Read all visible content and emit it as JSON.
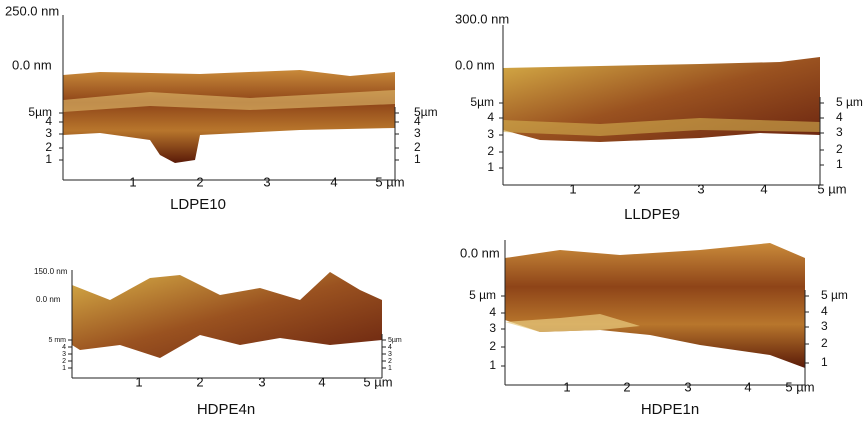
{
  "panels": [
    {
      "top_label": "250.0 nm",
      "zero_label": "0.0 nm",
      "left_axis_labels": [
        "5µm",
        "4",
        "3",
        "2",
        "1"
      ],
      "right_axis_labels": [
        "5µm",
        "4",
        "3",
        "2",
        "1"
      ],
      "x_axis_labels": [
        "1",
        "2",
        "3",
        "4",
        "5 µm"
      ],
      "caption": "LDPE10"
    },
    {
      "top_label": "300.0 nm",
      "zero_label": "0.0 nm",
      "left_axis_labels": [
        "5µm",
        "4",
        "3",
        "2",
        "1"
      ],
      "right_axis_labels": [
        "5 µm",
        "4",
        "3",
        "2",
        "1"
      ],
      "x_axis_labels": [
        "1",
        "2",
        "3",
        "4",
        "5 µm"
      ],
      "caption": "LLDPE9"
    },
    {
      "top_label": "150.0 nm",
      "zero_label": "0.0 nm",
      "left_axis_labels": [
        "5 mm",
        "4",
        "3",
        "2",
        "1"
      ],
      "right_axis_labels": [
        "5µm",
        "4",
        "3",
        "2",
        "1"
      ],
      "x_axis_labels": [
        "1",
        "2",
        "3",
        "4",
        "5 µm"
      ],
      "caption": "HDPE4n"
    },
    {
      "zero_label": "0.0 nm",
      "left_axis_labels": [
        "5 µm",
        "4",
        "3",
        "2",
        "1"
      ],
      "right_axis_labels": [
        "5 µm",
        "4",
        "3",
        "2",
        "1"
      ],
      "x_axis_labels": [
        "1",
        "2",
        "3",
        "4",
        "5 µm"
      ],
      "caption": "HDPE1n"
    }
  ]
}
